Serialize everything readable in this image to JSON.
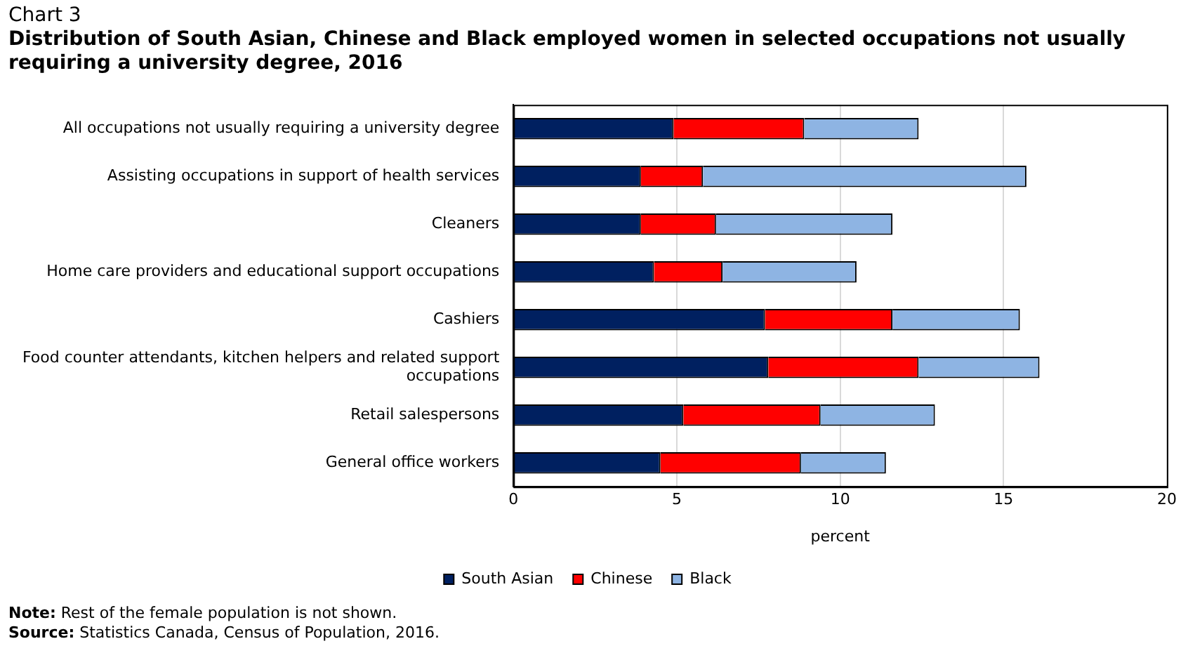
{
  "chart_data": {
    "type": "bar",
    "orientation": "horizontal",
    "stacked": true,
    "title": "Chart 3",
    "subtitle": "Distribution  of South Asian, Chinese and Black employed women in selected occupations  not usually requiring  a university degree, 2016",
    "xlabel": "percent",
    "categories": [
      "All occupations not usually requiring a university degree",
      "Assisting occupations in support of health services",
      "Cleaners",
      "Home care providers and educational support occupations",
      "Cashiers",
      "Food counter attendants, kitchen helpers and related support occupations",
      "Retail salespersons",
      "General office workers"
    ],
    "series": [
      {
        "name": "South Asian",
        "color": "#002060",
        "values": [
          4.9,
          3.9,
          3.9,
          4.3,
          7.7,
          7.8,
          5.2,
          4.5
        ]
      },
      {
        "name": "Chinese",
        "color": "#ff0000",
        "values": [
          4.0,
          1.9,
          2.3,
          2.1,
          3.9,
          4.6,
          4.2,
          4.3
        ]
      },
      {
        "name": "Black",
        "color": "#8eb4e3",
        "values": [
          3.5,
          9.9,
          5.4,
          4.1,
          3.9,
          3.7,
          3.5,
          2.6
        ]
      }
    ],
    "xlim": [
      0,
      20
    ],
    "xticks": [
      0,
      5,
      10,
      15,
      20
    ],
    "grid": "x",
    "legend": "bottom",
    "annotations": [
      "Note: Rest of the female population is not shown.",
      "Source: Statistics Canada, Census of Population, 2016."
    ]
  }
}
